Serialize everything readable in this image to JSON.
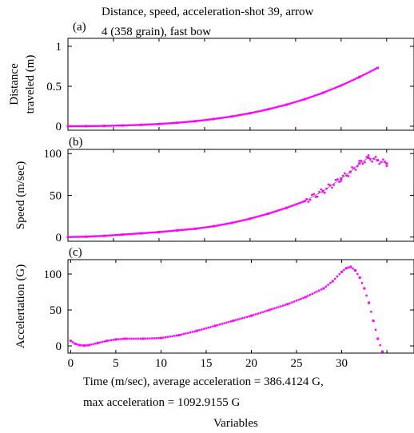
{
  "figure": {
    "title_line1": "Distance, speed, acceleration-shot 39, arrow",
    "title_line2": "4 (358 grain), fast bow",
    "caption_line1": "Time (m/sec), average acceleration = 386.4124 G,",
    "caption_line2": "max acceleration = 1092.9155 G",
    "caption_line3": "Variables"
  },
  "chart_data": [
    {
      "type": "scatter",
      "panel_label": "(a)",
      "title": "Distance, speed, acceleration-shot 39, arrow 4 (358 grain), fast bow",
      "xlabel": "",
      "ylabel": "Distance traveled (m)",
      "ylabel_lines": [
        "Distance",
        "traveled (m)"
      ],
      "xlim": [
        0,
        38
      ],
      "ylim": [
        -0.05,
        1.1
      ],
      "yticks": [
        0,
        0.5,
        1
      ],
      "ytick_labels": [
        "0",
        "0.5",
        "1"
      ],
      "grid": false,
      "series": [
        {
          "color": "#ff00ff",
          "fit_color": "#888888",
          "x": [
            0,
            2,
            4,
            6,
            8,
            10,
            12,
            14,
            16,
            18,
            20,
            22,
            24,
            26,
            28,
            30,
            32,
            34
          ],
          "values": [
            0.0,
            0.001,
            0.004,
            0.009,
            0.017,
            0.028,
            0.043,
            0.063,
            0.09,
            0.122,
            0.163,
            0.212,
            0.27,
            0.338,
            0.418,
            0.51,
            0.615,
            0.73
          ]
        }
      ]
    },
    {
      "type": "scatter",
      "panel_label": "(b)",
      "xlabel": "",
      "ylabel": "Speed (m/sec)",
      "ylabel_lines": [
        "Speed (m/sec)"
      ],
      "xlim": [
        0,
        38
      ],
      "ylim": [
        -5,
        105
      ],
      "yticks": [
        0,
        50,
        100
      ],
      "ytick_labels": [
        "0",
        "50",
        "100"
      ],
      "grid": false,
      "series": [
        {
          "color": "#ff00ff",
          "fit_color": "#888888",
          "x": [
            0,
            2,
            4,
            6,
            8,
            10,
            12,
            14,
            16,
            18,
            20,
            22,
            24,
            26,
            28,
            30,
            31,
            32,
            33,
            34,
            35
          ],
          "values": [
            0,
            0.5,
            1.5,
            3,
            4.5,
            6,
            8,
            10,
            13,
            17,
            22,
            28,
            35,
            43,
            55,
            70,
            78,
            88,
            95,
            92,
            88
          ]
        }
      ]
    },
    {
      "type": "scatter",
      "panel_label": "(c)",
      "xlabel": "Time (m/sec), average acceleration = 386.4124 G, max acceleration = 1092.9155 G",
      "ylabel": "Accelertation (G)",
      "ylabel_lines": [
        "Accelertation (G)"
      ],
      "xlim": [
        -0.3,
        38
      ],
      "ylim": [
        -10,
        120
      ],
      "yticks": [
        0,
        50,
        100
      ],
      "ytick_labels": [
        "0",
        "50",
        "100"
      ],
      "xticks": [
        0,
        5,
        10,
        15,
        20,
        25,
        30
      ],
      "xtick_labels": [
        "0",
        "5",
        "10",
        "15",
        "20",
        "25",
        "30"
      ],
      "grid": false,
      "series": [
        {
          "color": "#ff00ff",
          "x": [
            0,
            0.5,
            1,
            1.5,
            2,
            3,
            4,
            5,
            6,
            8,
            10,
            12,
            14,
            16,
            18,
            20,
            22,
            24,
            26,
            28,
            29,
            30,
            30.5,
            31,
            31.5,
            32,
            32.5,
            33,
            33.5,
            34,
            34.5
          ],
          "values": [
            7,
            3,
            1,
            0.5,
            1,
            4,
            7,
            9,
            10,
            10,
            11,
            15,
            21,
            28,
            35,
            42,
            50,
            58,
            68,
            80,
            90,
            103,
            108,
            110,
            105,
            95,
            80,
            60,
            35,
            10,
            -8
          ]
        }
      ]
    }
  ]
}
